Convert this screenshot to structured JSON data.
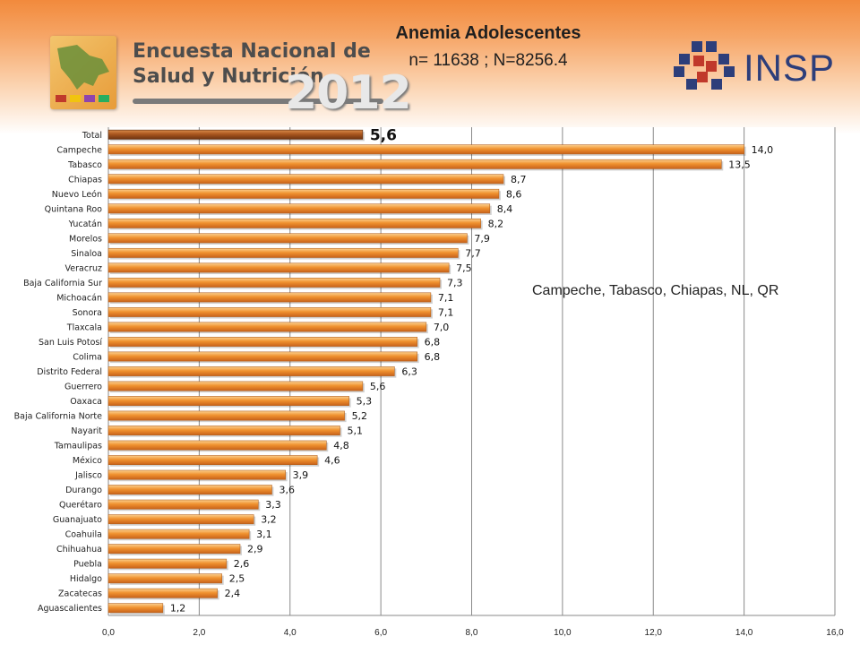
{
  "header": {
    "logo_text_line1": "Encuesta Nacional de",
    "logo_text_line2": "Salud y Nutrición",
    "logo_year": "2012",
    "insp_label": "INSP"
  },
  "annotation": "Campeche, Tabasco, Chiapas, NL, QR",
  "chart_data": {
    "type": "bar",
    "orientation": "horizontal",
    "title": "Anemia Adolescentes",
    "subtitle": "n= 11638 ; N=8256.4",
    "categories": [
      "Total",
      "Campeche",
      "Tabasco",
      "Chiapas",
      "Nuevo León",
      "Quintana Roo",
      "Yucatán",
      "Morelos",
      "Sinaloa",
      "Veracruz",
      "Baja California Sur",
      "Michoacán",
      "Sonora",
      "Tlaxcala",
      "San Luis Potosí",
      "Colima",
      "Distrito Federal",
      "Guerrero",
      "Oaxaca",
      "Baja California Norte",
      "Nayarit",
      "Tamaulipas",
      "México",
      "Jalisco",
      "Durango",
      "Querétaro",
      "Guanajuato",
      "Coahuila",
      "Chihuahua",
      "Puebla",
      "Hidalgo",
      "Zacatecas",
      "Aguascalientes"
    ],
    "values": [
      5.6,
      14.0,
      13.5,
      8.7,
      8.6,
      8.4,
      8.2,
      7.9,
      7.7,
      7.5,
      7.3,
      7.1,
      7.1,
      7.0,
      6.8,
      6.8,
      6.3,
      5.6,
      5.3,
      5.2,
      5.1,
      4.8,
      4.6,
      3.9,
      3.6,
      3.3,
      3.2,
      3.1,
      2.9,
      2.6,
      2.5,
      2.4,
      1.2
    ],
    "data_labels": [
      "5,6",
      "14,0",
      "13,5",
      "8,7",
      "8,6",
      "8,4",
      "8,2",
      "7,9",
      "7,7",
      "7,5",
      "7,3",
      "7,1",
      "7,1",
      "7,0",
      "6,8",
      "6,8",
      "6,3",
      "5,6",
      "5,3",
      "5,2",
      "5,1",
      "4,8",
      "4,6",
      "3,9",
      "3,6",
      "3,3",
      "3,2",
      "3,1",
      "2,9",
      "2,6",
      "2,5",
      "2,4",
      "1,2"
    ],
    "x_ticks": [
      "0,0",
      "2,0",
      "4,0",
      "6,0",
      "8,0",
      "10,0",
      "12,0",
      "14,0",
      "16,0"
    ],
    "xlim": [
      0,
      16
    ],
    "grid": true,
    "highlight_category": "Total",
    "colors": {
      "bar": "#f0922f",
      "bar_dark": "#c8621a",
      "highlight": "#a9561f",
      "grid": "#8a8a8a"
    }
  }
}
